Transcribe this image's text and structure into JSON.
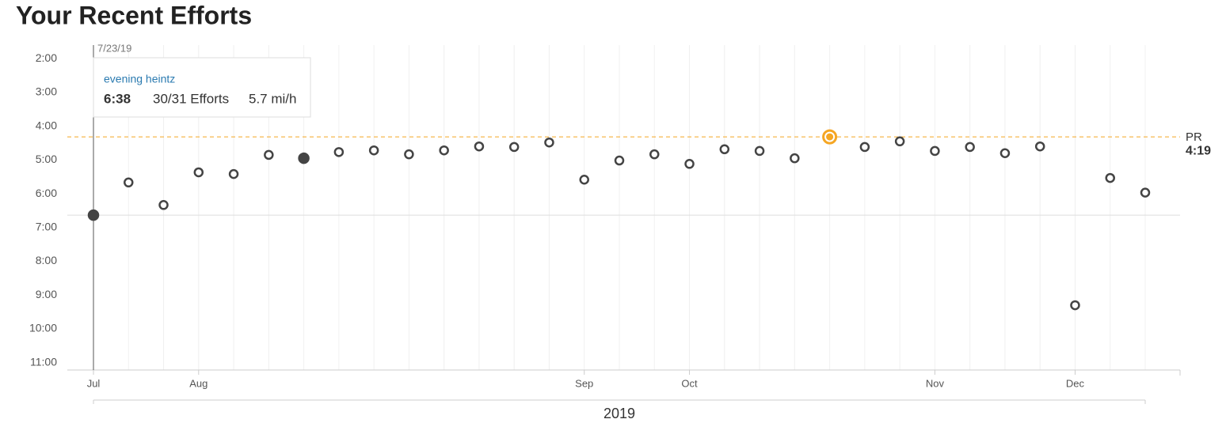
{
  "chart_data": {
    "type": "scatter",
    "title": "Your Recent Efforts",
    "categories": [
      "Jul",
      null,
      null,
      "Aug",
      null,
      null,
      null,
      null,
      null,
      null,
      null,
      null,
      null,
      null,
      "Sep",
      null,
      null,
      "Oct",
      null,
      null,
      null,
      null,
      null,
      null,
      "Nov",
      null,
      null,
      null,
      "Dec",
      null,
      null
    ],
    "values": [
      398,
      340,
      380,
      322,
      325,
      291,
      297,
      286,
      283,
      290,
      283,
      276,
      277,
      269,
      335,
      301,
      290,
      307,
      281,
      284,
      297,
      259,
      277,
      267,
      284,
      277,
      288,
      276,
      558,
      332,
      358
    ],
    "color": "#444444",
    "pr_color": "#f5a623",
    "highlighted_indices": [
      0,
      6
    ],
    "ylim": [
      673,
      96
    ],
    "yticks": [
      {
        "value": 120,
        "label": "2:00"
      },
      {
        "value": 180,
        "label": "3:00"
      },
      {
        "value": 240,
        "label": "4:00"
      },
      {
        "value": 300,
        "label": "5:00"
      },
      {
        "value": 360,
        "label": "6:00"
      },
      {
        "value": 420,
        "label": "7:00"
      },
      {
        "value": 480,
        "label": "8:00"
      },
      {
        "value": 540,
        "label": "9:00"
      },
      {
        "value": 600,
        "label": "10:00"
      },
      {
        "value": 660,
        "label": "11:00"
      }
    ],
    "x_label": "2019",
    "pr": {
      "label": "PR",
      "value": 259,
      "value_label": "4:19"
    },
    "tooltip": {
      "index": 0,
      "date": "7/23/19",
      "name": "evening heintz",
      "time": "6:38",
      "efforts": "30/31 Efforts",
      "speed": "5.7 mi/h"
    }
  }
}
